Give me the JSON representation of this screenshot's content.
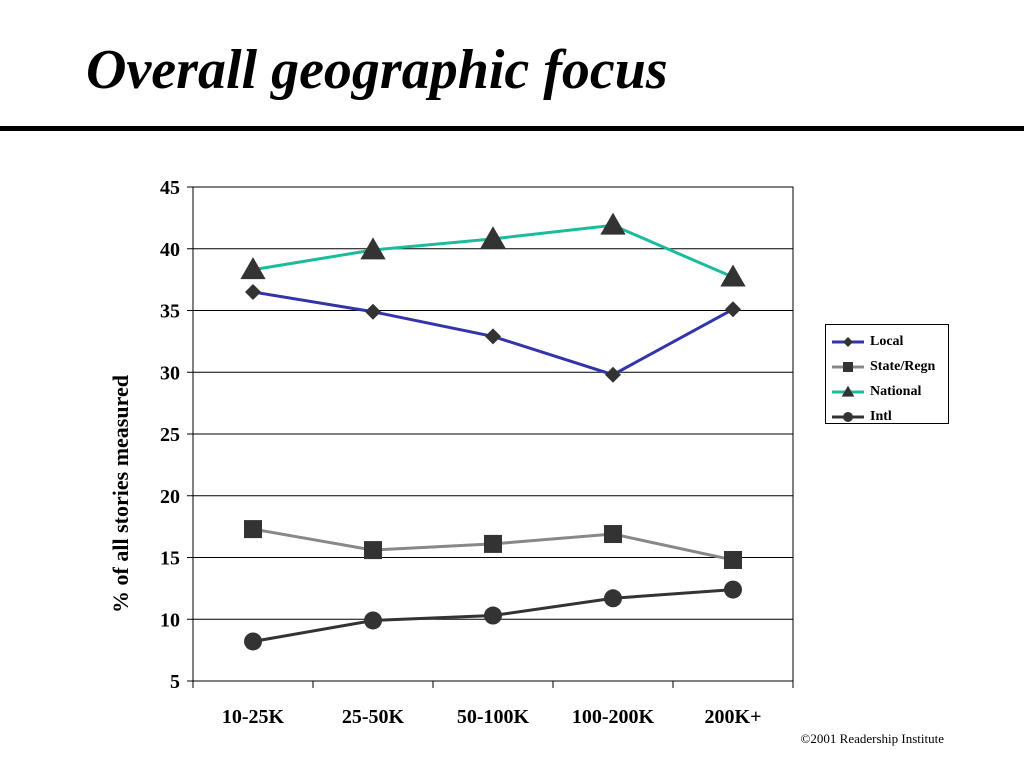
{
  "slide": {
    "title": "Overall geographic focus",
    "footer": "©2001 Readership Institute"
  },
  "chart_data": {
    "type": "line",
    "title": "",
    "xlabel": "",
    "ylabel": "% of all stories measured",
    "categories": [
      "10-25K",
      "25-50K",
      "50-100K",
      "100-200K",
      "200K+"
    ],
    "ylim": [
      5,
      45
    ],
    "yticks": [
      5,
      10,
      15,
      20,
      25,
      30,
      35,
      40,
      45
    ],
    "grid": true,
    "legend_position": "right",
    "series": [
      {
        "name": "Local",
        "marker": "diamond",
        "line_color": "#3333aa",
        "marker_color": "#333333",
        "values": [
          36.5,
          34.9,
          32.9,
          29.8,
          35.1
        ]
      },
      {
        "name": "State/Regn",
        "marker": "square",
        "line_color": "#888888",
        "marker_color": "#333333",
        "values": [
          17.3,
          15.6,
          16.1,
          16.9,
          14.8
        ]
      },
      {
        "name": "National",
        "marker": "triangle",
        "line_color": "#1abc9c",
        "marker_color": "#333333",
        "values": [
          38.3,
          39.9,
          40.8,
          41.9,
          37.7
        ]
      },
      {
        "name": "Intl",
        "marker": "circle",
        "line_color": "#333333",
        "marker_color": "#333333",
        "values": [
          8.2,
          9.9,
          10.3,
          11.7,
          12.4
        ]
      }
    ]
  }
}
